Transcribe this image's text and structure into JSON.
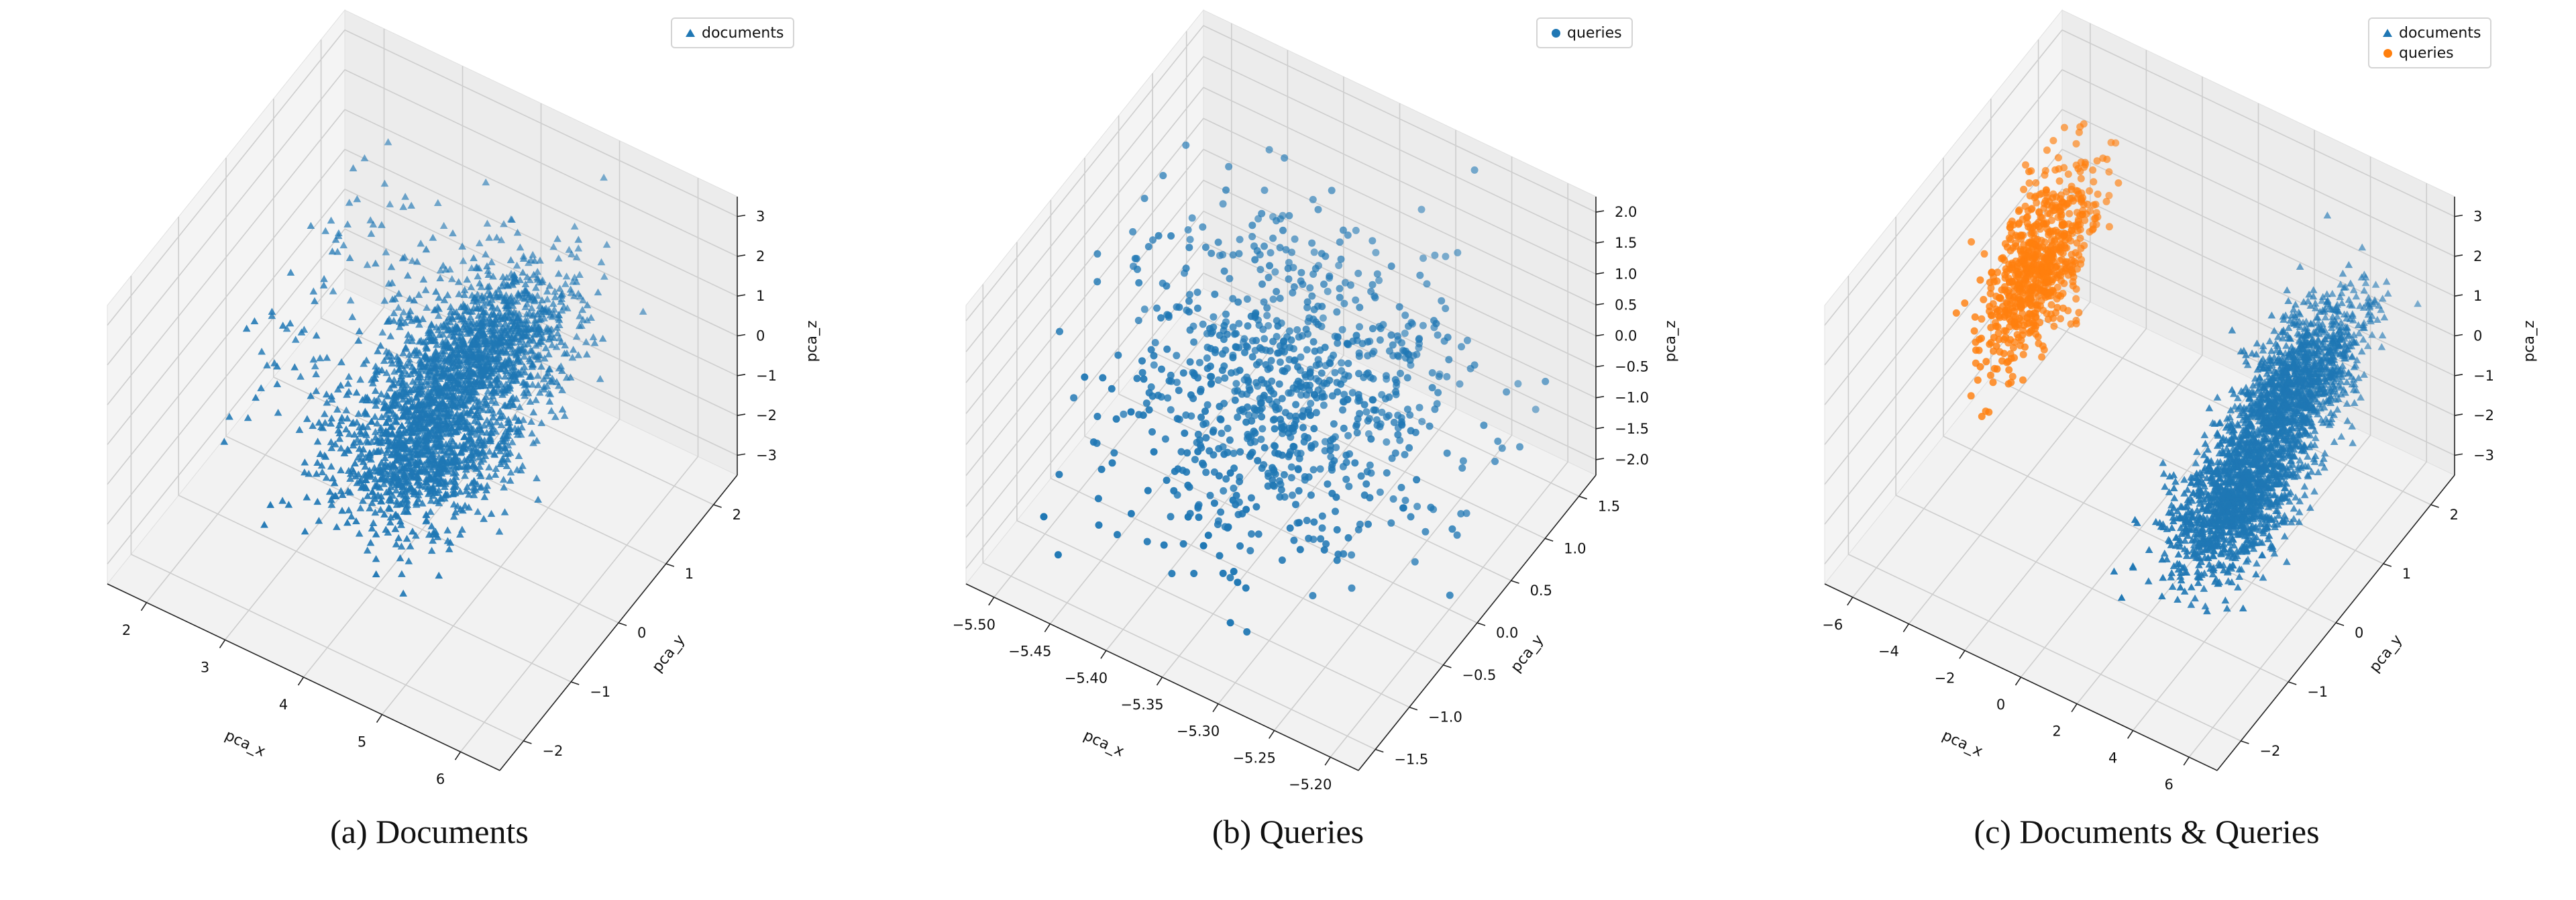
{
  "chart_data": [
    {
      "type": "scatter3d",
      "caption": "(a)  Documents",
      "xlabel": "pca_x",
      "ylabel": "pca_y",
      "zlabel": "pca_z",
      "xticks": [
        "2",
        "3",
        "4",
        "5",
        "6"
      ],
      "yticks": [
        "−2",
        "−1",
        "0",
        "1",
        "2"
      ],
      "zticks": [
        "3",
        "2",
        "1",
        "0",
        "−1",
        "−2",
        "−3"
      ],
      "xlim": [
        1.5,
        6
      ],
      "ylim": [
        -2.5,
        2.5
      ],
      "zlim": [
        -3.5,
        3.5
      ],
      "legend": "top-right",
      "grid": true,
      "series": [
        {
          "name": "documents",
          "marker": "triangle",
          "color": "#1f77b4",
          "count": 12000
        }
      ]
    },
    {
      "type": "scatter3d",
      "caption": "(b)  Queries",
      "xlabel": "pca_x",
      "ylabel": "pca_y",
      "zlabel": "pca_z",
      "xticks": [
        "−5.50",
        "−5.45",
        "−5.40",
        "−5.35",
        "−5.30",
        "−5.25",
        "−5.20"
      ],
      "yticks": [
        "−1.5",
        "−1.0",
        "−0.5",
        "0.0",
        "0.5",
        "1.0",
        "1.5"
      ],
      "zticks": [
        "2.0",
        "1.5",
        "1.0",
        "0.5",
        "0.0",
        "−0.5",
        "−1.0",
        "−1.5",
        "−2.0"
      ],
      "xlim": [
        -5.52,
        -5.18
      ],
      "ylim": [
        -1.7,
        1.7
      ],
      "zlim": [
        -2.1,
        2.1
      ],
      "legend": "top-right",
      "grid": true,
      "series": [
        {
          "name": "queries",
          "marker": "circle",
          "color": "#1f77b4",
          "count": 1000
        }
      ]
    },
    {
      "type": "scatter3d",
      "caption": "(c)  Documents & Queries",
      "xlabel": "pca_x",
      "ylabel": "pca_y",
      "zlabel": "pca_z",
      "xticks": [
        "−6",
        "−4",
        "−2",
        "0",
        "2",
        "4",
        "6"
      ],
      "yticks": [
        "−2",
        "−1",
        "0",
        "1",
        "2"
      ],
      "zticks": [
        "3",
        "2",
        "1",
        "0",
        "−1",
        "−2",
        "−3"
      ],
      "xlim": [
        -6.5,
        6.5
      ],
      "ylim": [
        -2.5,
        2.5
      ],
      "zlim": [
        -3.5,
        3.5
      ],
      "legend": "top-right",
      "grid": true,
      "series": [
        {
          "name": "documents",
          "marker": "triangle",
          "color": "#1f77b4",
          "count": 12000
        },
        {
          "name": "queries",
          "marker": "circle",
          "color": "#ff7f0e",
          "count": 1000
        }
      ]
    }
  ]
}
